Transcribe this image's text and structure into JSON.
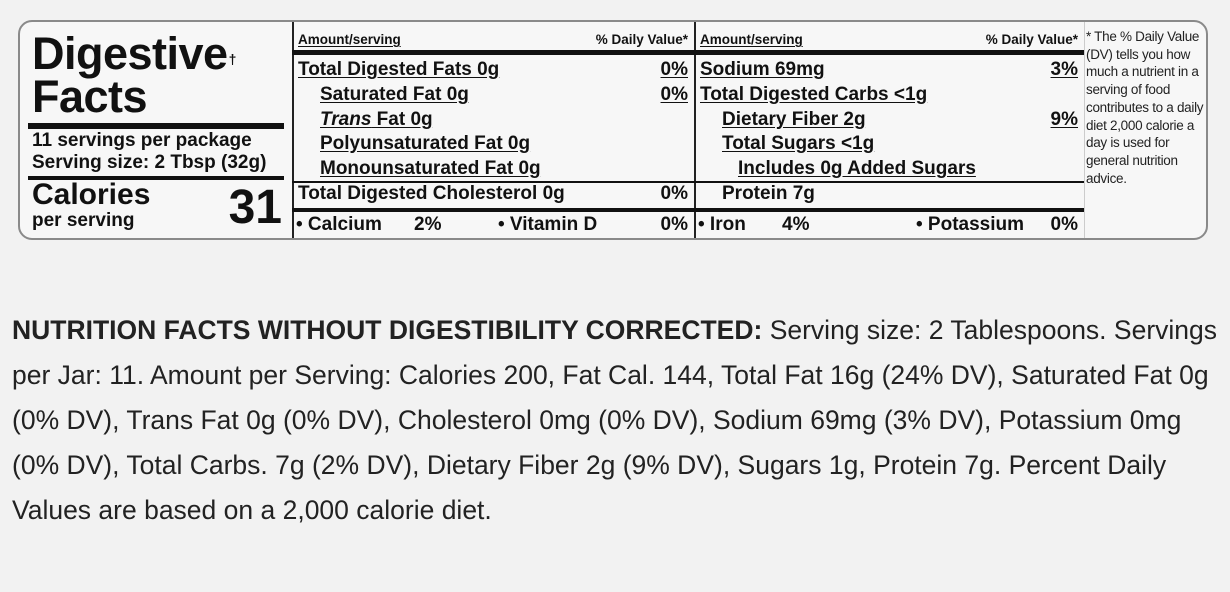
{
  "label": {
    "title_line1": "Digestive",
    "title_line2": "Facts",
    "dagger": "†",
    "servings_per_package": "11 servings per package",
    "serving_size": "Serving size: 2 Tbsp (32g)",
    "calories_label": "Calories",
    "calories_sub": "per serving",
    "calories_value": "31",
    "header_amount": "Amount/serving",
    "header_dv": "% Daily Value*",
    "left_rows": [
      {
        "name": "Total Digested Fats  0g",
        "dv": "0%"
      },
      {
        "name": "Saturated Fat  0g",
        "dv": "0%"
      },
      {
        "name_italic": "Trans",
        "name": " Fat  0g",
        "dv": ""
      },
      {
        "name": "Polyunsaturated Fat  0g",
        "dv": ""
      },
      {
        "name": "Monounsaturated Fat  0g",
        "dv": ""
      },
      {
        "name": "Total Digested Cholesterol  0g",
        "dv": "0%"
      }
    ],
    "left_minerals": {
      "calcium": "• Calcium",
      "calcium_val": "2%",
      "vitd": "• Vitamin D",
      "vitd_val": "0%"
    },
    "right_rows": [
      {
        "name": "Sodium  69mg",
        "dv": "3%"
      },
      {
        "name": "Total Digested Carbs  <1g",
        "dv": ""
      },
      {
        "name": "Dietary Fiber  2g",
        "dv": "9%"
      },
      {
        "name": "Total Sugars  <1g",
        "dv": ""
      },
      {
        "name": "Includes 0g Added Sugars",
        "dv": ""
      },
      {
        "name": "Protein  7g",
        "dv": ""
      }
    ],
    "right_minerals": {
      "iron": "• Iron",
      "iron_val": "4%",
      "potassium": "• Potassium",
      "potassium_val": "0%"
    },
    "footnote": "* The % Daily Value (DV) tells you how much a nutrient in a serving of food contributes to a daily diet 2,000 calorie a day is used for general nutrition advice."
  },
  "paragraph": {
    "heading": "NUTRITION FACTS WITHOUT DIGESTIBILITY CORRECTED:",
    "body": " Serving size: 2 Tablespoons. Servings per Jar: 11. Amount per Serving: Calories 200, Fat Cal. 144, Total Fat 16g (24% DV), Saturated Fat 0g (0% DV), Trans Fat 0g (0% DV), Cholesterol 0mg (0% DV), Sodium 69mg (3% DV), Potassium 0mg (0% DV), Total Carbs. 7g (2% DV), Dietary Fiber 2g (9% DV), Sugars 1g, Protein 7g. Percent Daily Values are based on a 2,000 calorie diet."
  }
}
